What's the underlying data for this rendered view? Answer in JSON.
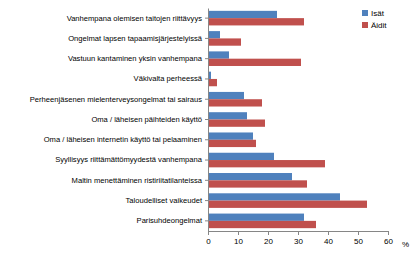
{
  "chart_data": {
    "type": "bar",
    "orientation": "horizontal",
    "categories": [
      "Vanhempana olemisen taitojen riittävyys",
      "Ongelmat lapsen tapaamisjärjestelyissä",
      "Vastuun kantaminen yksin vanhempana",
      "Väkivalta perheessä",
      "Perheenjäsenen mielenterveysongelmat tai sairaus",
      "Oma / läheisen päihteiden käyttö",
      "Oma / läheisen internetin käyttö tai pelaaminen",
      "Syyllisyys riittämättömyydestä vanhempana",
      "Maltin menettäminen ristiriitatilanteissa",
      "Taloudelliset vaikeudet",
      "Parisuhdeongelmat"
    ],
    "series": [
      {
        "name": "Isät",
        "color": "#4f81bd",
        "values": [
          23,
          4,
          7,
          1,
          12,
          13,
          15,
          22,
          28,
          44,
          32
        ]
      },
      {
        "name": "Äidit",
        "color": "#c0504d",
        "values": [
          32,
          11,
          31,
          3,
          18,
          19,
          16,
          39,
          33,
          53,
          36
        ]
      }
    ],
    "x_label": "%",
    "xlim": [
      0,
      60
    ],
    "xticks": [
      0,
      10,
      20,
      30,
      40,
      50,
      60
    ],
    "grid": false,
    "legend": "upper right"
  }
}
